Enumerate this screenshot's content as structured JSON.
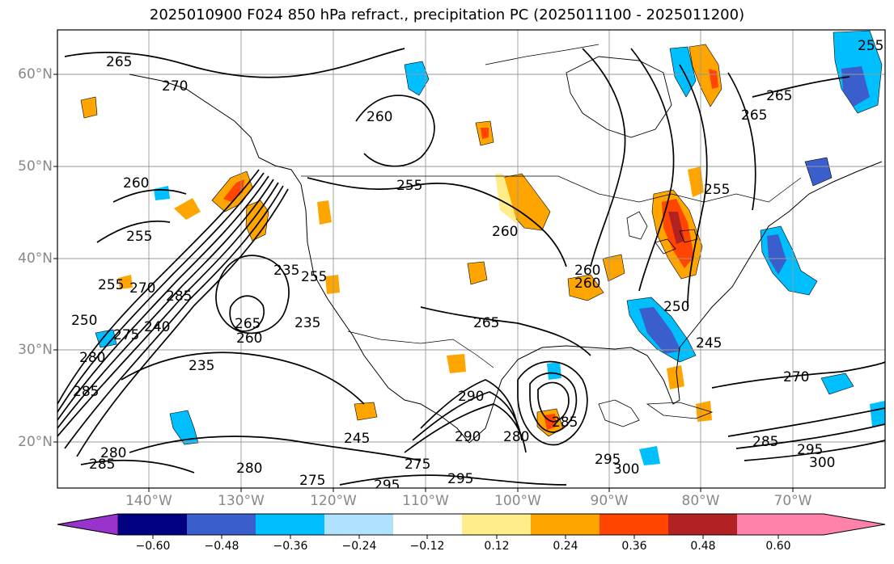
{
  "title": "2025010900 F024 850 hPa refract., precipitation PC (2025011100 - 2025011200)",
  "axes": {
    "lat_labels": [
      "60°N",
      "50°N",
      "40°N",
      "30°N",
      "20°N"
    ],
    "lon_labels": [
      "140°W",
      "130°W",
      "120°W",
      "110°W",
      "100°W",
      "90°W",
      "80°W",
      "70°W"
    ]
  },
  "colorbar": {
    "tick_labels": [
      "−0.60",
      "−0.48",
      "−0.36",
      "−0.24",
      "−0.12",
      "0.12",
      "0.24",
      "0.36",
      "0.48",
      "0.60"
    ],
    "colors": [
      "#9933cc",
      "#000080",
      "#3a5fcd",
      "#00bfff",
      "#b0e2ff",
      "#ffffff",
      "#ffec8b",
      "#ffa500",
      "#ff4500",
      "#b22222",
      "#ff82ab"
    ]
  },
  "contour_labels": [
    "265",
    "270",
    "260",
    "255",
    "265",
    "260",
    "255",
    "255",
    "260",
    "255",
    "270",
    "285",
    "250",
    "275",
    "240",
    "280",
    "265",
    "260",
    "235",
    "235",
    "255",
    "235",
    "265",
    "260",
    "260",
    "265",
    "255",
    "245",
    "270",
    "250",
    "245",
    "285",
    "280",
    "285",
    "275",
    "280",
    "275",
    "295",
    "290",
    "295",
    "290",
    "280",
    "285",
    "295",
    "300",
    "285",
    "295",
    "300"
  ],
  "palette": {
    "contour": "#000000",
    "frame": "#000000",
    "grid": "#999999",
    "tick_label": "#888888"
  }
}
